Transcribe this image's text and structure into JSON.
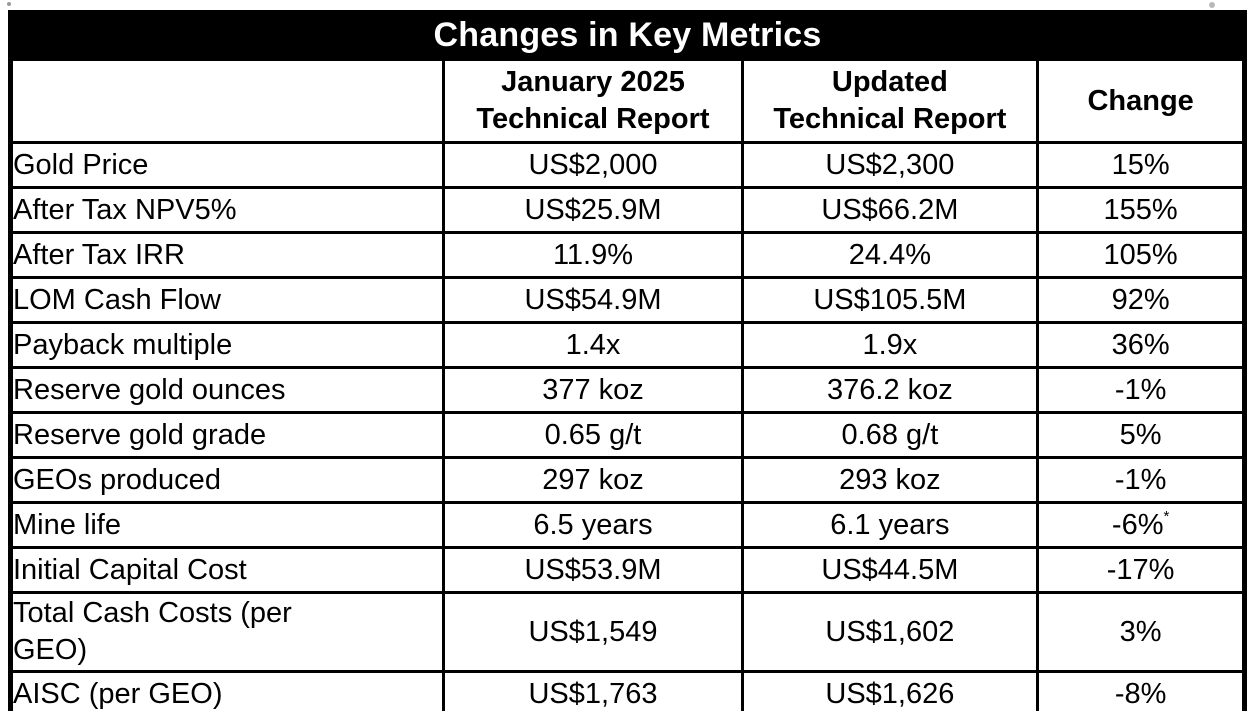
{
  "table": {
    "title": "Changes in Key Metrics",
    "header": {
      "metric": "",
      "jan_line1": "January 2025",
      "jan_line2": "Technical Report",
      "updated_line1": "Updated",
      "updated_line2": "Technical Report",
      "change": "Change"
    },
    "rows": [
      {
        "label": "Gold Price",
        "jan": "US$2,000",
        "updated": "US$2,300",
        "change": "15%"
      },
      {
        "label": "After Tax NPV5%",
        "jan": "US$25.9M",
        "updated": "US$66.2M",
        "change": "155%"
      },
      {
        "label": "After Tax IRR",
        "jan": "11.9%",
        "updated": "24.4%",
        "change": "105%"
      },
      {
        "label": "LOM Cash Flow",
        "jan": "US$54.9M",
        "updated": "US$105.5M",
        "change": "92%"
      },
      {
        "label": "Payback multiple",
        "jan": "1.4x",
        "updated": "1.9x",
        "change": "36%"
      },
      {
        "label": "Reserve gold ounces",
        "jan": "377 koz",
        "updated": "376.2 koz",
        "change": "-1%"
      },
      {
        "label": "Reserve gold grade",
        "jan": "0.65 g/t",
        "updated": "0.68 g/t",
        "change": "5%"
      },
      {
        "label": "GEOs produced",
        "jan": "297 koz",
        "updated": "293 koz",
        "change": "-1%"
      },
      {
        "label": "Mine life",
        "jan": "6.5 years",
        "updated": "6.1 years",
        "change": "-6%",
        "change_footnote": "*"
      },
      {
        "label": "Initial Capital Cost",
        "jan": "US$53.9M",
        "updated": "US$44.5M",
        "change": "-17%"
      },
      {
        "label": "Total Cash Costs (per GEO)",
        "jan": "US$1,549",
        "updated": "US$1,602",
        "change": "3%"
      },
      {
        "label": "AISC (per GEO)",
        "jan": "US$1,763",
        "updated": "US$1,626",
        "change": "-8%"
      }
    ]
  },
  "colors": {
    "title_bg": "#000000",
    "title_text": "#ffffff",
    "border": "#000000",
    "body_text": "#000000",
    "background": "#ffffff"
  },
  "chart_data": {
    "type": "table",
    "title": "Changes in Key Metrics",
    "columns": [
      "",
      "January 2025 Technical Report",
      "Updated Technical Report",
      "Change"
    ],
    "rows": [
      [
        "Gold Price",
        "US$2,000",
        "US$2,300",
        "15%"
      ],
      [
        "After Tax NPV5%",
        "US$25.9M",
        "US$66.2M",
        "155%"
      ],
      [
        "After Tax IRR",
        "11.9%",
        "24.4%",
        "105%"
      ],
      [
        "LOM Cash Flow",
        "US$54.9M",
        "US$105.5M",
        "92%"
      ],
      [
        "Payback multiple",
        "1.4x",
        "1.9x",
        "36%"
      ],
      [
        "Reserve gold ounces",
        "377 koz",
        "376.2 koz",
        "-1%"
      ],
      [
        "Reserve gold grade",
        "0.65 g/t",
        "0.68 g/t",
        "5%"
      ],
      [
        "GEOs produced",
        "297 koz",
        "293 koz",
        "-1%"
      ],
      [
        "Mine life",
        "6.5 years",
        "6.1 years",
        "-6%*"
      ],
      [
        "Initial Capital Cost",
        "US$53.9M",
        "US$44.5M",
        "-17%"
      ],
      [
        "Total Cash Costs (per GEO)",
        "US$1,549",
        "US$1,602",
        "3%"
      ],
      [
        "AISC (per GEO)",
        "US$1,763",
        "US$1,626",
        "-8%"
      ]
    ]
  }
}
